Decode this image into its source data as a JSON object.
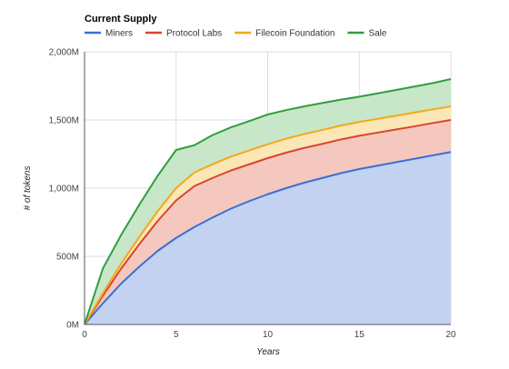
{
  "chart_data": {
    "type": "area",
    "stacked": true,
    "title": "Current Supply",
    "xlabel": "Years",
    "ylabel": "# of tokens",
    "xlim": [
      0,
      20
    ],
    "ylim": [
      0,
      2000
    ],
    "x_ticks": [
      0,
      5,
      10,
      15,
      20
    ],
    "y_ticks": [
      0,
      500,
      1000,
      1500,
      2000
    ],
    "y_tick_labels": [
      "0M",
      "500M",
      "1,000M",
      "1,500M",
      "2,000M"
    ],
    "grid": true,
    "legend_position": "top-left",
    "x": [
      0,
      1,
      2,
      3,
      4,
      5,
      6,
      7,
      8,
      9,
      10,
      11,
      12,
      13,
      14,
      15,
      16,
      17,
      18,
      19,
      20
    ],
    "series": [
      {
        "name": "Miners",
        "color": "#3b6fd4",
        "fill": "#c3d2f0",
        "values": [
          0,
          155,
          300,
          425,
          540,
          635,
          715,
          785,
          850,
          905,
          955,
          1000,
          1040,
          1075,
          1110,
          1140,
          1165,
          1190,
          1215,
          1240,
          1265
        ]
      },
      {
        "name": "Protocol Labs",
        "color": "#d9452e",
        "fill": "#f4c8bf",
        "values": [
          0,
          55,
          110,
          165,
          220,
          275,
          300,
          290,
          280,
          270,
          265,
          260,
          255,
          250,
          247,
          244,
          242,
          240,
          238,
          237,
          235
        ]
      },
      {
        "name": "Filecoin Foundation",
        "color": "#f2a81d",
        "fill": "#fbe6b5",
        "values": [
          0,
          18,
          36,
          54,
          72,
          90,
          100,
          101,
          101,
          102,
          102,
          102,
          102,
          102,
          102,
          102,
          101,
          101,
          101,
          100,
          100
        ]
      },
      {
        "name": "Sale",
        "color": "#2f9e3f",
        "fill": "#c8e6c8",
        "values": [
          0,
          182,
          211,
          237,
          260,
          280,
          200,
          214,
          215,
          215,
          218,
          210,
          203,
          198,
          190,
          185,
          187,
          189,
          191,
          193,
          200
        ]
      }
    ]
  }
}
